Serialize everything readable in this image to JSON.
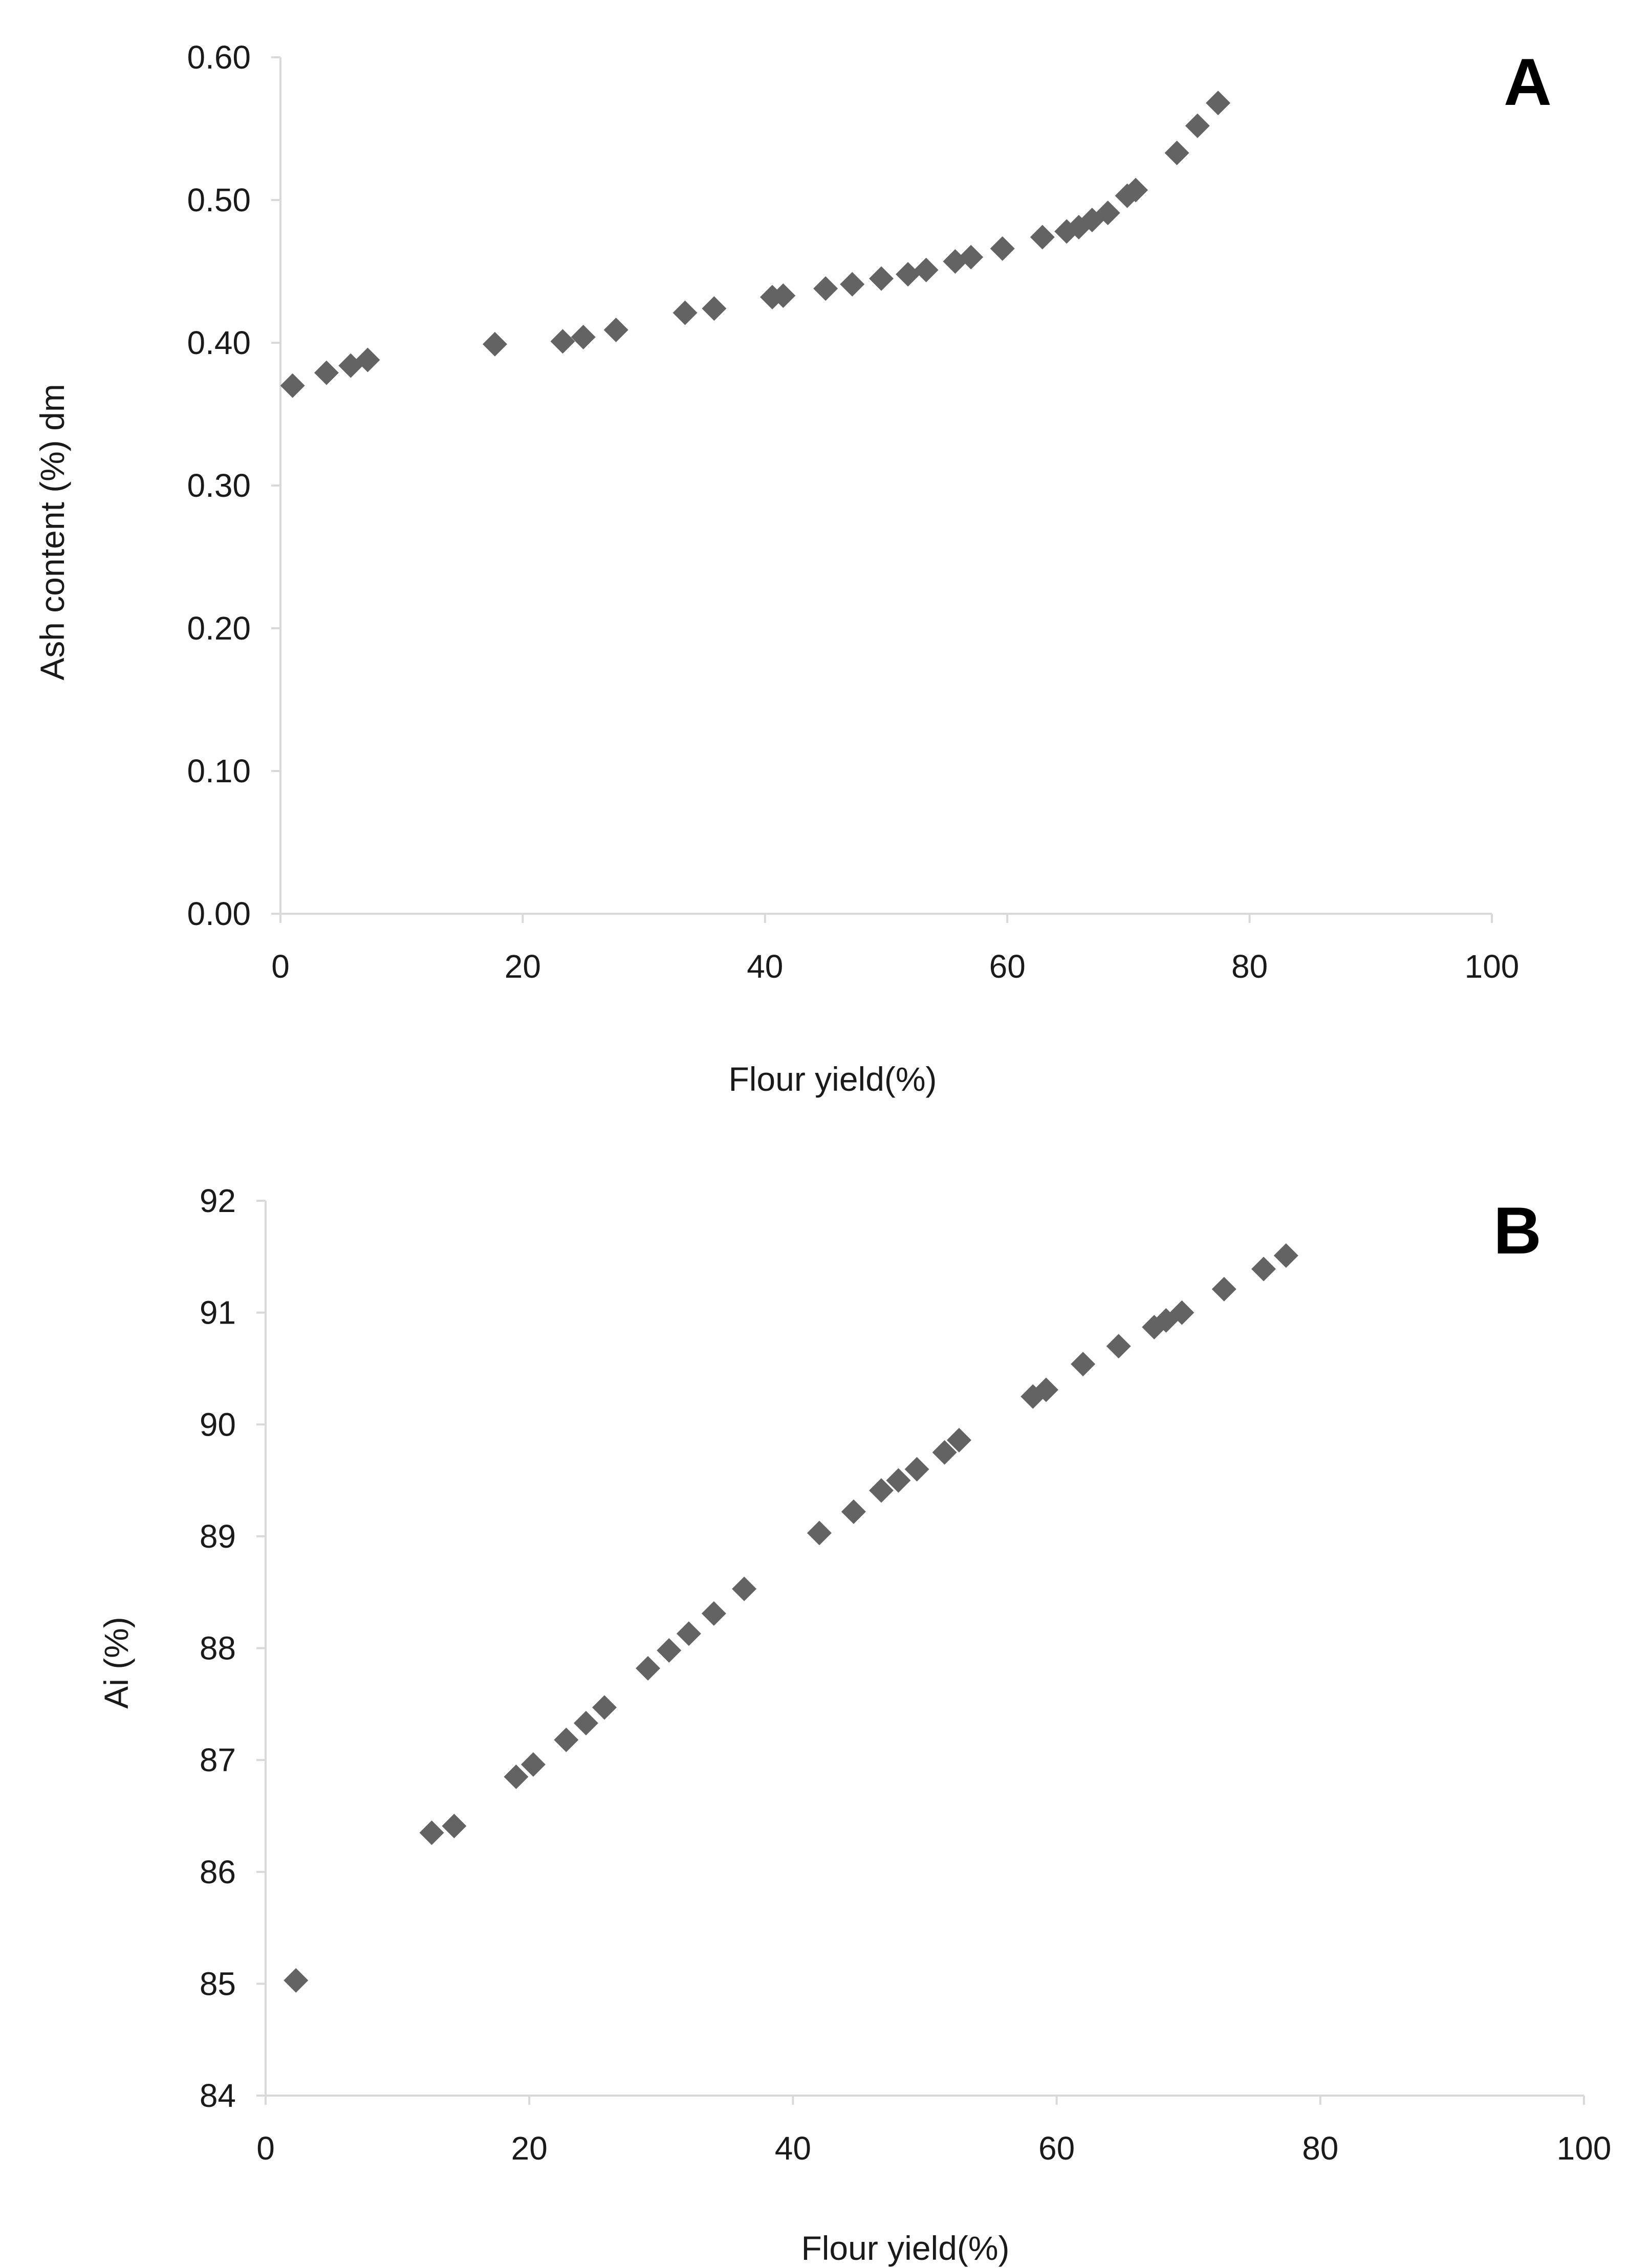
{
  "chart_data": [
    {
      "type": "scatter",
      "panel_label": "A",
      "xlabel": "Flour yield(%)",
      "ylabel": "Ash content (%) dm",
      "xlim": [
        0,
        100
      ],
      "ylim": [
        0.0,
        0.6
      ],
      "x_ticks": [
        "0",
        "20",
        "40",
        "60",
        "80",
        "100"
      ],
      "x_tick_values": [
        0,
        20,
        40,
        60,
        80,
        100
      ],
      "y_ticks": [
        "0.00",
        "0.10",
        "0.20",
        "0.30",
        "0.40",
        "0.50",
        "0.60"
      ],
      "y_tick_values": [
        0.0,
        0.1,
        0.2,
        0.3,
        0.4,
        0.5,
        0.6
      ],
      "grid": false,
      "marker": "diamond",
      "marker_color": "#636363",
      "series": [
        {
          "name": "Ash content",
          "x": [
            1.0,
            3.8,
            5.8,
            7.2,
            17.7,
            23.3,
            25.0,
            27.7,
            33.4,
            35.8,
            40.6,
            41.5,
            45.0,
            47.2,
            49.6,
            51.8,
            53.3,
            55.7,
            57.0,
            59.6,
            62.9,
            64.9,
            65.9,
            67.0,
            68.3,
            69.9,
            70.6,
            74.0,
            75.7,
            77.4
          ],
          "y": [
            0.37,
            0.379,
            0.384,
            0.388,
            0.399,
            0.401,
            0.404,
            0.409,
            0.421,
            0.424,
            0.432,
            0.433,
            0.438,
            0.441,
            0.445,
            0.448,
            0.451,
            0.457,
            0.46,
            0.466,
            0.474,
            0.478,
            0.481,
            0.486,
            0.491,
            0.503,
            0.507,
            0.533,
            0.552,
            0.568
          ]
        }
      ]
    },
    {
      "type": "scatter",
      "panel_label": "B",
      "xlabel": "Flour yield(%)",
      "ylabel": "Ai (%)",
      "xlim": [
        0,
        100
      ],
      "ylim": [
        84,
        92
      ],
      "x_ticks": [
        "0",
        "20",
        "40",
        "60",
        "80",
        "100"
      ],
      "x_tick_values": [
        0,
        20,
        40,
        60,
        80,
        100
      ],
      "y_ticks": [
        "84",
        "85",
        "86",
        "87",
        "88",
        "89",
        "90",
        "91",
        "92"
      ],
      "y_tick_values": [
        84,
        85,
        86,
        87,
        88,
        89,
        90,
        91,
        92
      ],
      "grid": false,
      "marker": "diamond",
      "marker_color": "#636363",
      "series": [
        {
          "name": "Ai",
          "x": [
            2.3,
            12.6,
            14.3,
            19.0,
            20.3,
            22.8,
            24.3,
            25.7,
            29.0,
            30.6,
            32.1,
            34.0,
            36.3,
            42.0,
            44.6,
            46.7,
            48.0,
            49.4,
            51.5,
            52.6,
            58.2,
            59.2,
            62.0,
            64.7,
            67.4,
            68.3,
            69.5,
            72.7,
            75.7,
            77.4
          ],
          "y": [
            85.03,
            86.35,
            86.41,
            86.85,
            86.96,
            87.18,
            87.33,
            87.47,
            87.82,
            87.98,
            88.13,
            88.31,
            88.53,
            89.03,
            89.22,
            89.41,
            89.5,
            89.6,
            89.75,
            89.86,
            90.25,
            90.31,
            90.54,
            90.7,
            90.87,
            90.93,
            91.0,
            91.21,
            91.39,
            91.51
          ]
        }
      ]
    }
  ]
}
